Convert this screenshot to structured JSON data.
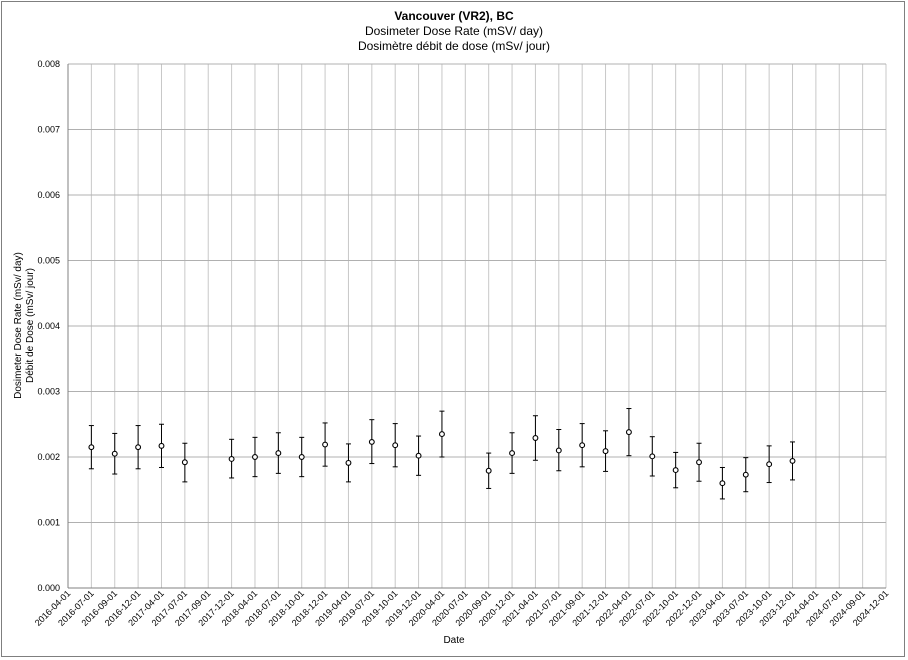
{
  "title": "Vancouver (VR2), BC",
  "subtitle_en": "Dosimeter Dose Rate (mSV/ day)",
  "subtitle_fr": "Dosimètre débit de dose (mSv/ jour)",
  "chart_data": {
    "type": "scatter",
    "title": "Vancouver (VR2), BC",
    "subtitle": [
      "Dosimeter Dose Rate (mSV/ day)",
      "Dosimètre débit de dose (mSv/ jour)"
    ],
    "xlabel": "Date",
    "ylabel": [
      "Dosimeter Dose Rate (mSv/ day)",
      "Débit de Dose (mSv/ jour)"
    ],
    "ylim": [
      0,
      0.008
    ],
    "y_ticks": [
      "0.000",
      "0.001",
      "0.002",
      "0.003",
      "0.004",
      "0.005",
      "0.006",
      "0.007",
      "0.008"
    ],
    "x_ticks": [
      "2016-04-01",
      "2016-07-01",
      "2016-09-01",
      "2016-12-01",
      "2017-04-01",
      "2017-07-01",
      "2017-09-01",
      "2017-12-01",
      "2018-04-01",
      "2018-07-01",
      "2018-10-01",
      "2018-12-01",
      "2019-04-01",
      "2019-07-01",
      "2019-10-01",
      "2019-12-01",
      "2020-04-01",
      "2020-07-01",
      "2020-09-01",
      "2020-12-01",
      "2021-04-01",
      "2021-07-01",
      "2021-09-01",
      "2021-12-01",
      "2022-04-01",
      "2022-07-01",
      "2022-10-01",
      "2022-12-01",
      "2023-04-01",
      "2023-07-01",
      "2023-10-01",
      "2023-12-01",
      "2024-04-01",
      "2024-07-01",
      "2024-09-01",
      "2024-12-01"
    ],
    "grid": true,
    "error_bars": true,
    "points": [
      {
        "x": "2016-07-01",
        "y": 0.00215,
        "low": 0.00182,
        "high": 0.00248
      },
      {
        "x": "2016-09-01",
        "y": 0.00205,
        "low": 0.00174,
        "high": 0.00236
      },
      {
        "x": "2016-12-01",
        "y": 0.00215,
        "low": 0.00182,
        "high": 0.00248
      },
      {
        "x": "2017-04-01",
        "y": 0.00217,
        "low": 0.00184,
        "high": 0.0025
      },
      {
        "x": "2017-07-01",
        "y": 0.00192,
        "low": 0.00162,
        "high": 0.00221
      },
      {
        "x": "2017-12-01",
        "y": 0.00197,
        "low": 0.00168,
        "high": 0.00227
      },
      {
        "x": "2018-04-01",
        "y": 0.002,
        "low": 0.0017,
        "high": 0.0023
      },
      {
        "x": "2018-07-01",
        "y": 0.00206,
        "low": 0.00175,
        "high": 0.00237
      },
      {
        "x": "2018-10-01",
        "y": 0.002,
        "low": 0.0017,
        "high": 0.0023
      },
      {
        "x": "2018-12-01",
        "y": 0.00219,
        "low": 0.00186,
        "high": 0.00252
      },
      {
        "x": "2019-04-01",
        "y": 0.00191,
        "low": 0.00162,
        "high": 0.0022
      },
      {
        "x": "2019-07-01",
        "y": 0.00223,
        "low": 0.0019,
        "high": 0.00257
      },
      {
        "x": "2019-10-01",
        "y": 0.00218,
        "low": 0.00185,
        "high": 0.00251
      },
      {
        "x": "2019-12-01",
        "y": 0.00202,
        "low": 0.00172,
        "high": 0.00232
      },
      {
        "x": "2020-04-01",
        "y": 0.00235,
        "low": 0.002,
        "high": 0.0027
      },
      {
        "x": "2020-09-01",
        "y": 0.00179,
        "low": 0.00152,
        "high": 0.00206
      },
      {
        "x": "2020-12-01",
        "y": 0.00206,
        "low": 0.00175,
        "high": 0.00237
      },
      {
        "x": "2021-04-01",
        "y": 0.00229,
        "low": 0.00195,
        "high": 0.00263
      },
      {
        "x": "2021-07-01",
        "y": 0.0021,
        "low": 0.00179,
        "high": 0.00242
      },
      {
        "x": "2021-09-01",
        "y": 0.00218,
        "low": 0.00185,
        "high": 0.00251
      },
      {
        "x": "2021-12-01",
        "y": 0.00209,
        "low": 0.00178,
        "high": 0.0024
      },
      {
        "x": "2022-04-01",
        "y": 0.00238,
        "low": 0.00202,
        "high": 0.00274
      },
      {
        "x": "2022-07-01",
        "y": 0.00201,
        "low": 0.00171,
        "high": 0.00231
      },
      {
        "x": "2022-10-01",
        "y": 0.0018,
        "low": 0.00153,
        "high": 0.00207
      },
      {
        "x": "2022-12-01",
        "y": 0.00192,
        "low": 0.00163,
        "high": 0.00221
      },
      {
        "x": "2023-04-01",
        "y": 0.0016,
        "low": 0.00136,
        "high": 0.00184
      },
      {
        "x": "2023-07-01",
        "y": 0.00173,
        "low": 0.00147,
        "high": 0.00199
      },
      {
        "x": "2023-10-01",
        "y": 0.00189,
        "low": 0.00161,
        "high": 0.00217
      },
      {
        "x": "2023-12-01",
        "y": 0.00194,
        "low": 0.00165,
        "high": 0.00223
      }
    ]
  }
}
